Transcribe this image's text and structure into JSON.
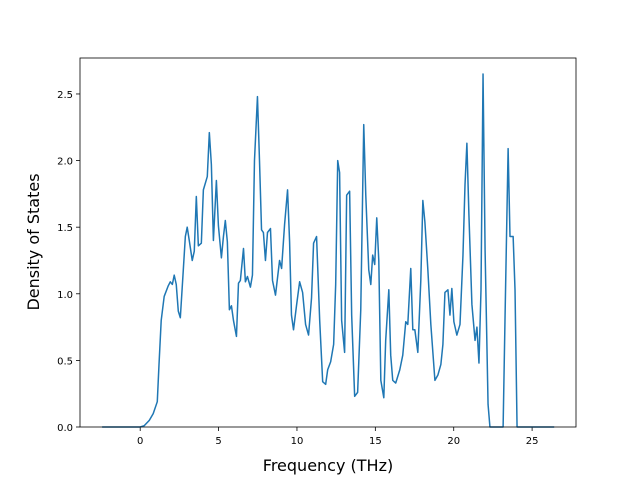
{
  "chart_data": {
    "type": "line",
    "xlabel": "Frequency (THz)",
    "ylabel": "Density of States",
    "x": [
      -2.43,
      0,
      0.26,
      0.58,
      0.83,
      1.09,
      1.2,
      1.34,
      1.53,
      1.79,
      1.92,
      2.05,
      2.17,
      2.3,
      2.43,
      2.56,
      2.75,
      2.88,
      3.0,
      3.13,
      3.32,
      3.45,
      3.58,
      3.71,
      3.9,
      4.03,
      4.28,
      4.41,
      4.54,
      4.67,
      4.86,
      4.99,
      5.18,
      5.31,
      5.43,
      5.56,
      5.69,
      5.82,
      5.95,
      6.14,
      6.27,
      6.39,
      6.59,
      6.71,
      6.84,
      7.03,
      7.16,
      7.29,
      7.48,
      7.61,
      7.74,
      7.86,
      7.99,
      8.12,
      8.31,
      8.44,
      8.63,
      8.89,
      9.02,
      9.21,
      9.4,
      9.53,
      9.65,
      9.78,
      9.97,
      10.17,
      10.36,
      10.55,
      10.74,
      10.93,
      11.06,
      11.25,
      11.45,
      11.64,
      11.83,
      11.96,
      12.15,
      12.34,
      12.47,
      12.6,
      12.72,
      12.85,
      13.04,
      13.17,
      13.36,
      13.49,
      13.68,
      13.87,
      14.07,
      14.26,
      14.39,
      14.58,
      14.71,
      14.83,
      14.96,
      15.09,
      15.22,
      15.35,
      15.54,
      15.66,
      15.86,
      15.98,
      16.11,
      16.3,
      16.56,
      16.75,
      16.94,
      17.07,
      17.26,
      17.39,
      17.52,
      17.71,
      17.9,
      18.03,
      18.16,
      18.35,
      18.54,
      18.8,
      18.99,
      19.18,
      19.31,
      19.44,
      19.63,
      19.76,
      19.88,
      20.01,
      20.2,
      20.4,
      20.59,
      20.72,
      20.84,
      20.97,
      21.16,
      21.36,
      21.48,
      21.61,
      21.74,
      21.87,
      22.0,
      22.19,
      22.31,
      23.15,
      23.27,
      23.47,
      23.59,
      23.79,
      23.91,
      24.04,
      26.41
    ],
    "series": [
      {
        "color": "#1f77b4",
        "values": [
          0,
          0,
          0.01,
          0.05,
          0.1,
          0.19,
          0.47,
          0.8,
          0.98,
          1.06,
          1.09,
          1.07,
          1.14,
          1.07,
          0.87,
          0.82,
          1.18,
          1.43,
          1.5,
          1.4,
          1.25,
          1.32,
          1.73,
          1.36,
          1.38,
          1.78,
          1.88,
          2.21,
          1.97,
          1.4,
          1.85,
          1.51,
          1.27,
          1.43,
          1.55,
          1.39,
          0.88,
          0.91,
          0.8,
          0.68,
          1.08,
          1.1,
          1.34,
          1.09,
          1.13,
          1.05,
          1.14,
          2.0,
          2.48,
          2.0,
          1.48,
          1.46,
          1.25,
          1.46,
          1.49,
          1.1,
          0.99,
          1.25,
          1.19,
          1.52,
          1.78,
          1.39,
          0.84,
          0.73,
          0.91,
          1.09,
          1.01,
          0.77,
          0.69,
          0.97,
          1.38,
          1.43,
          0.8,
          0.34,
          0.32,
          0.43,
          0.49,
          0.62,
          1.07,
          2.0,
          1.91,
          0.8,
          0.56,
          1.74,
          1.77,
          0.84,
          0.23,
          0.26,
          0.88,
          2.27,
          1.74,
          1.18,
          1.07,
          1.29,
          1.22,
          1.57,
          1.25,
          0.35,
          0.22,
          0.65,
          1.03,
          0.54,
          0.35,
          0.33,
          0.43,
          0.54,
          0.79,
          0.77,
          1.19,
          0.73,
          0.73,
          0.56,
          1.1,
          1.7,
          1.54,
          1.18,
          0.77,
          0.35,
          0.39,
          0.47,
          0.62,
          1.01,
          1.03,
          0.84,
          1.04,
          0.79,
          0.69,
          0.77,
          1.29,
          1.82,
          2.13,
          1.59,
          0.92,
          0.65,
          0.75,
          0.48,
          1.03,
          2.65,
          1.33,
          0.17,
          0,
          0,
          0.8,
          2.09,
          1.43,
          1.43,
          1.03,
          0,
          0
        ]
      }
    ],
    "xlim": [
      -3.84,
      27.8
    ],
    "xticks": [
      0,
      5,
      10,
      15,
      20,
      25
    ],
    "ylim": [
      0,
      2.77
    ],
    "yticks": [
      {
        "value": 0,
        "label": "0.0"
      },
      0.5,
      {
        "value": 1,
        "label": "1.0"
      },
      1.5,
      {
        "value": 2,
        "label": "2.0"
      },
      2.5
    ]
  }
}
